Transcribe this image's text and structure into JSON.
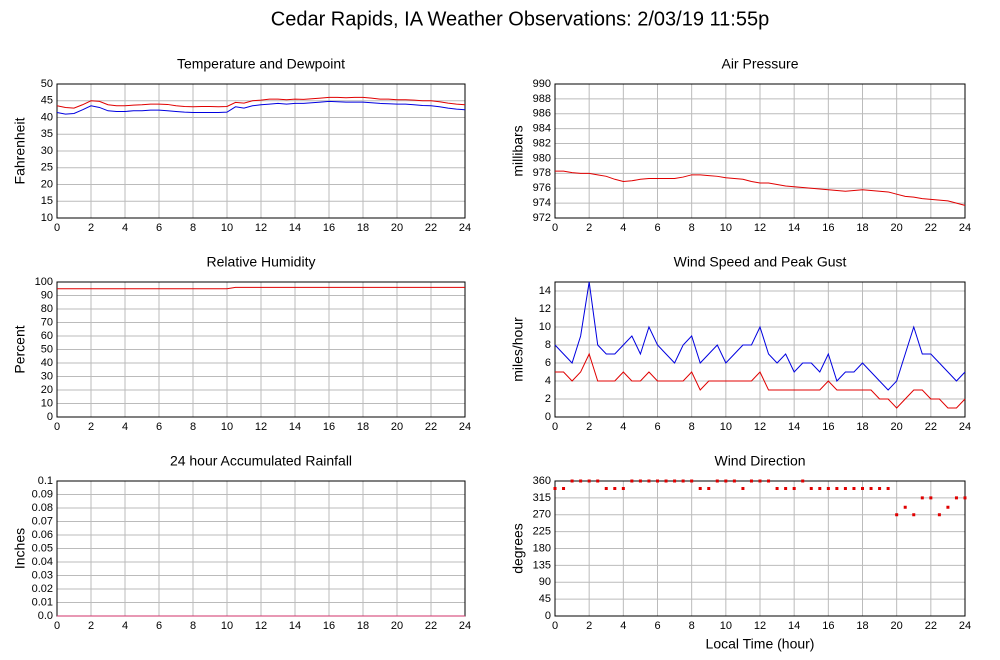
{
  "title": "Cedar Rapids, IA Weather Observations: 2/03/19 11:55p",
  "chart_data": [
    {
      "type": "line",
      "title": "Temperature and Dewpoint",
      "ylabel": "Fahrenheit",
      "x": [
        0,
        0.5,
        1,
        1.5,
        2,
        2.5,
        3,
        3.5,
        4,
        4.5,
        5,
        5.5,
        6,
        6.5,
        7,
        7.5,
        8,
        8.5,
        9,
        9.5,
        10,
        10.5,
        11,
        11.5,
        12,
        12.5,
        13,
        13.5,
        14,
        14.5,
        15,
        15.5,
        16,
        16.5,
        17,
        17.5,
        18,
        18.5,
        19,
        19.5,
        20,
        20.5,
        21,
        21.5,
        22,
        22.5,
        23,
        23.5,
        24
      ],
      "series": [
        {
          "color": "#e00000",
          "values": [
            43.5,
            43,
            42.8,
            43.8,
            45,
            44.8,
            43.8,
            43.5,
            43.5,
            43.7,
            43.8,
            44,
            44,
            43.9,
            43.5,
            43.3,
            43.2,
            43.3,
            43.3,
            43.2,
            43.3,
            44.5,
            44.3,
            45,
            45.2,
            45.5,
            45.5,
            45.3,
            45.5,
            45.4,
            45.6,
            45.8,
            46,
            46,
            45.9,
            46,
            46,
            45.8,
            45.5,
            45.5,
            45.3,
            45.3,
            45.2,
            45,
            45,
            44.7,
            44.3,
            44,
            43.8
          ]
        },
        {
          "color": "#0000e0",
          "values": [
            41.5,
            41,
            41.2,
            42.3,
            43.5,
            43,
            42,
            41.8,
            41.8,
            42,
            42,
            42.2,
            42.2,
            42,
            41.8,
            41.6,
            41.5,
            41.5,
            41.5,
            41.5,
            41.6,
            43.2,
            42.8,
            43.5,
            43.8,
            44,
            44.2,
            44,
            44.2,
            44.2,
            44.4,
            44.6,
            44.8,
            44.7,
            44.6,
            44.6,
            44.6,
            44.4,
            44.2,
            44.1,
            44,
            44,
            43.8,
            43.6,
            43.5,
            43.2,
            42.8,
            42.5,
            42.3
          ]
        }
      ],
      "xlim": [
        0,
        24
      ],
      "xticks": [
        0,
        2,
        4,
        6,
        8,
        10,
        12,
        14,
        16,
        18,
        20,
        22,
        24
      ],
      "ylim": [
        10,
        50
      ],
      "yticks": [
        10,
        15,
        20,
        25,
        30,
        35,
        40,
        45,
        50
      ],
      "grid": true
    },
    {
      "type": "line",
      "title": "Air Pressure",
      "ylabel": "millibars",
      "x": [
        0,
        0.5,
        1,
        1.5,
        2,
        2.5,
        3,
        3.5,
        4,
        4.5,
        5,
        5.5,
        6,
        6.5,
        7,
        7.5,
        8,
        8.5,
        9,
        9.5,
        10,
        10.5,
        11,
        11.5,
        12,
        12.5,
        13,
        13.5,
        14,
        14.5,
        15,
        15.5,
        16,
        16.5,
        17,
        17.5,
        18,
        18.5,
        19,
        19.5,
        20,
        20.5,
        21,
        21.5,
        22,
        22.5,
        23,
        23.5,
        24
      ],
      "series": [
        {
          "color": "#e00000",
          "values": [
            978.3,
            978.3,
            978.1,
            978,
            978,
            977.8,
            977.6,
            977.2,
            976.9,
            977,
            977.2,
            977.3,
            977.3,
            977.3,
            977.3,
            977.5,
            977.8,
            977.8,
            977.7,
            977.6,
            977.4,
            977.3,
            977.2,
            976.9,
            976.7,
            976.7,
            976.5,
            976.3,
            976.2,
            976.1,
            976,
            975.9,
            975.8,
            975.7,
            975.6,
            975.7,
            975.8,
            975.7,
            975.6,
            975.5,
            975.2,
            974.9,
            974.8,
            974.6,
            974.5,
            974.4,
            974.3,
            974,
            973.7
          ]
        }
      ],
      "xlim": [
        0,
        24
      ],
      "xticks": [
        0,
        2,
        4,
        6,
        8,
        10,
        12,
        14,
        16,
        18,
        20,
        22,
        24
      ],
      "ylim": [
        972,
        990
      ],
      "yticks": [
        972,
        974,
        976,
        978,
        980,
        982,
        984,
        986,
        988,
        990
      ],
      "grid": true
    },
    {
      "type": "line",
      "title": "Relative Humidity",
      "ylabel": "Percent",
      "x": [
        0,
        0.5,
        1,
        1.5,
        2,
        2.5,
        3,
        3.5,
        4,
        4.5,
        5,
        5.5,
        6,
        6.5,
        7,
        7.5,
        8,
        8.5,
        9,
        9.5,
        10,
        10.5,
        11,
        11.5,
        12,
        12.5,
        13,
        13.5,
        14,
        14.5,
        15,
        15.5,
        16,
        16.5,
        17,
        17.5,
        18,
        18.5,
        19,
        19.5,
        20,
        20.5,
        21,
        21.5,
        22,
        22.5,
        23,
        23.5,
        24
      ],
      "series": [
        {
          "color": "#e00000",
          "values": [
            95,
            95,
            95,
            95,
            95,
            95,
            95,
            95,
            95,
            95,
            95,
            95,
            95,
            95,
            95,
            95,
            95,
            95,
            95,
            95,
            95,
            96,
            96,
            96,
            96,
            96,
            96,
            96,
            96,
            96,
            96,
            96,
            96,
            96,
            96,
            96,
            96,
            96,
            96,
            96,
            96,
            96,
            96,
            96,
            96,
            96,
            96,
            96,
            96
          ]
        }
      ],
      "xlim": [
        0,
        24
      ],
      "xticks": [
        0,
        2,
        4,
        6,
        8,
        10,
        12,
        14,
        16,
        18,
        20,
        22,
        24
      ],
      "ylim": [
        0,
        100
      ],
      "yticks": [
        0,
        10,
        20,
        30,
        40,
        50,
        60,
        70,
        80,
        90,
        100
      ],
      "grid": true
    },
    {
      "type": "line",
      "title": "Wind Speed and Peak Gust",
      "ylabel": "miles/hour",
      "x": [
        0,
        0.5,
        1,
        1.5,
        2,
        2.5,
        3,
        3.5,
        4,
        4.5,
        5,
        5.5,
        6,
        6.5,
        7,
        7.5,
        8,
        8.5,
        9,
        9.5,
        10,
        10.5,
        11,
        11.5,
        12,
        12.5,
        13,
        13.5,
        14,
        14.5,
        15,
        15.5,
        16,
        16.5,
        17,
        17.5,
        18,
        18.5,
        19,
        19.5,
        20,
        20.5,
        21,
        21.5,
        22,
        22.5,
        23,
        23.5,
        24
      ],
      "series": [
        {
          "color": "#0000e0",
          "values": [
            8,
            7,
            6,
            9,
            15,
            8,
            7,
            7,
            8,
            9,
            7,
            10,
            8,
            7,
            6,
            8,
            9,
            6,
            7,
            8,
            6,
            7,
            8,
            8,
            10,
            7,
            6,
            7,
            5,
            6,
            6,
            5,
            7,
            4,
            5,
            5,
            6,
            5,
            4,
            3,
            4,
            7,
            10,
            7,
            7,
            6,
            5,
            4,
            5
          ]
        },
        {
          "color": "#e00000",
          "values": [
            5,
            5,
            4,
            5,
            7,
            4,
            4,
            4,
            5,
            4,
            4,
            5,
            4,
            4,
            4,
            4,
            5,
            3,
            4,
            4,
            4,
            4,
            4,
            4,
            5,
            3,
            3,
            3,
            3,
            3,
            3,
            3,
            4,
            3,
            3,
            3,
            3,
            3,
            2,
            2,
            1,
            2,
            3,
            3,
            2,
            2,
            1,
            1,
            2
          ]
        }
      ],
      "xlim": [
        0,
        24
      ],
      "xticks": [
        0,
        2,
        4,
        6,
        8,
        10,
        12,
        14,
        16,
        18,
        20,
        22,
        24
      ],
      "ylim": [
        0,
        15
      ],
      "yticks": [
        0,
        2,
        4,
        6,
        8,
        10,
        12,
        14
      ],
      "grid": true
    },
    {
      "type": "line",
      "title": "24 hour Accumulated Rainfall",
      "ylabel": "Inches",
      "x": [
        0,
        0.5,
        1,
        1.5,
        2,
        2.5,
        3,
        3.5,
        4,
        4.5,
        5,
        5.5,
        6,
        6.5,
        7,
        7.5,
        8,
        8.5,
        9,
        9.5,
        10,
        10.5,
        11,
        11.5,
        12,
        12.5,
        13,
        13.5,
        14,
        14.5,
        15,
        15.5,
        16,
        16.5,
        17,
        17.5,
        18,
        18.5,
        19,
        19.5,
        20,
        20.5,
        21,
        21.5,
        22,
        22.5,
        23,
        23.5,
        24
      ],
      "series": [
        {
          "color": "#d0306a",
          "values": [
            0,
            0,
            0,
            0,
            0,
            0,
            0,
            0,
            0,
            0,
            0,
            0,
            0,
            0,
            0,
            0,
            0,
            0,
            0,
            0,
            0,
            0,
            0,
            0,
            0,
            0,
            0,
            0,
            0,
            0,
            0,
            0,
            0,
            0,
            0,
            0,
            0,
            0,
            0,
            0,
            0,
            0,
            0,
            0,
            0,
            0,
            0,
            0,
            0
          ]
        }
      ],
      "xlim": [
        0,
        24
      ],
      "xticks": [
        0,
        2,
        4,
        6,
        8,
        10,
        12,
        14,
        16,
        18,
        20,
        22,
        24
      ],
      "ylim": [
        0,
        0.1
      ],
      "yticks": [
        {
          "value": 0,
          "label": "0.0"
        },
        0.01,
        0.02,
        0.03,
        0.04,
        0.05,
        0.06,
        0.07,
        0.08,
        0.09,
        0.1
      ],
      "grid": true
    },
    {
      "type": "scatter",
      "title": "Wind Direction",
      "ylabel": "degrees",
      "xlabel": "Local Time (hour)",
      "x": [
        0,
        0.5,
        1,
        1.5,
        2,
        2.5,
        3,
        3.5,
        4,
        4.5,
        5,
        5.5,
        6,
        6.5,
        7,
        7.5,
        8,
        8.5,
        9,
        9.5,
        10,
        10.5,
        11,
        11.5,
        12,
        12.5,
        13,
        13.5,
        14,
        14.5,
        15,
        15.5,
        16,
        16.5,
        17,
        17.5,
        18,
        18.5,
        19,
        19.5,
        20,
        20.5,
        21,
        21.5,
        22,
        22.5,
        23,
        23.5,
        24
      ],
      "series": [
        {
          "color": "#e00000",
          "values": [
            340,
            340,
            360,
            360,
            360,
            360,
            340,
            340,
            340,
            360,
            360,
            360,
            360,
            360,
            360,
            360,
            360,
            340,
            340,
            360,
            360,
            360,
            340,
            360,
            360,
            360,
            340,
            340,
            340,
            360,
            340,
            340,
            340,
            340,
            340,
            340,
            340,
            340,
            340,
            340,
            270,
            290,
            270,
            315,
            315,
            270,
            290,
            315,
            315
          ]
        }
      ],
      "xlim": [
        0,
        24
      ],
      "xticks": [
        0,
        2,
        4,
        6,
        8,
        10,
        12,
        14,
        16,
        18,
        20,
        22,
        24
      ],
      "ylim": [
        0,
        360
      ],
      "yticks": [
        0,
        45,
        90,
        135,
        180,
        225,
        270,
        315,
        360
      ],
      "grid": true
    }
  ]
}
